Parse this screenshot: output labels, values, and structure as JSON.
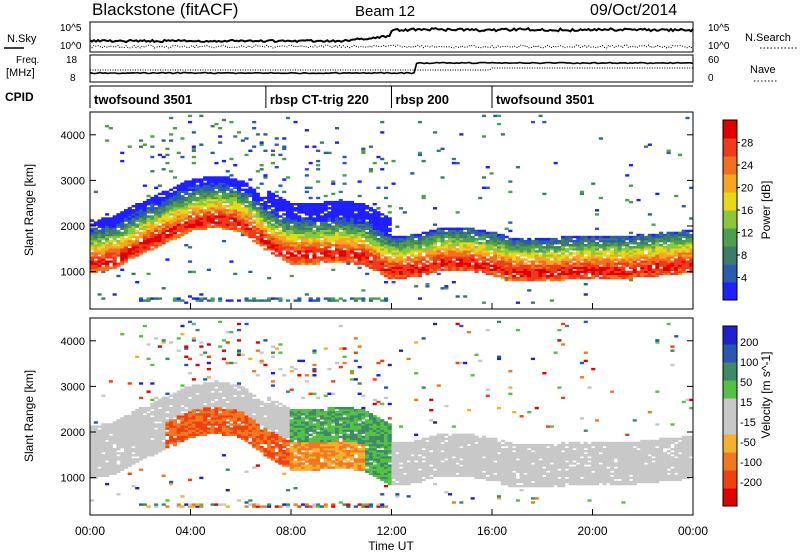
{
  "header": {
    "station": "Blackstone (fitACF)",
    "beam": "Beam 12",
    "date": "09/Oct/2014"
  },
  "strip_labels": {
    "n_sky": "N.Sky",
    "n_search": "N.Search",
    "freq_line1": "Freq.",
    "freq_line2": "[MHz]",
    "nave": "Nave",
    "cpid": "CPID"
  },
  "strip_ticks": {
    "sky_left": [
      "10^5",
      "10^0"
    ],
    "sky_right": [
      "10^5",
      "10^0"
    ],
    "freq_left": [
      "18",
      "8"
    ],
    "nave_right": [
      "60",
      "0"
    ]
  },
  "cpid_segments": [
    {
      "label": "twofsound 3501",
      "start_hour": 0.0
    },
    {
      "label": "rbsp CT-trig 220",
      "start_hour": 7.0
    },
    {
      "label": "rbsp 200",
      "start_hour": 12.0
    },
    {
      "label": "twofsound 3501",
      "start_hour": 16.0
    }
  ],
  "colors": {
    "power_scale": [
      "#1f1fff",
      "#2a5bb0",
      "#3d7d66",
      "#4d9e4d",
      "#8ac83a",
      "#e8d81a",
      "#f5a623",
      "#f07020",
      "#f03a1a",
      "#e00000"
    ],
    "velocity_scale": [
      "#e00000",
      "#f04010",
      "#f07820",
      "#f5b030",
      "#c8c8c8",
      "#c8c8c8",
      "#55c045",
      "#3d8a66",
      "#2a55b0",
      "#1f1fd0"
    ]
  },
  "chart_data": [
    {
      "type": "heatmap",
      "title": "Power",
      "xlabel": "",
      "ylabel": "Slant Range [km]",
      "x_range_hours": [
        0,
        24
      ],
      "ylim_km": [
        180,
        4500
      ],
      "y_ticks": [
        "1000",
        "2000",
        "3000",
        "4000"
      ],
      "colorbar_label": "Power [dB]",
      "colorbar_ticks": [
        "4",
        "8",
        "12",
        "16",
        "20",
        "24",
        "28"
      ],
      "colorbar_range": [
        0,
        32
      ],
      "band_center_km": [
        [
          0,
          1200
        ],
        [
          1,
          1300
        ],
        [
          2,
          1600
        ],
        [
          3,
          1850
        ],
        [
          4,
          2100
        ],
        [
          5,
          2200
        ],
        [
          6,
          2100
        ],
        [
          7,
          1700
        ],
        [
          8,
          1400
        ],
        [
          9,
          1400
        ],
        [
          10,
          1450
        ],
        [
          11,
          1350
        ],
        [
          12,
          1050
        ],
        [
          13,
          1100
        ],
        [
          14,
          1250
        ],
        [
          15,
          1250
        ],
        [
          16,
          1150
        ],
        [
          17,
          1000
        ],
        [
          18,
          1000
        ],
        [
          19,
          1050
        ],
        [
          20,
          1050
        ],
        [
          21,
          1050
        ],
        [
          22,
          1100
        ],
        [
          23,
          1150
        ],
        [
          24,
          1200
        ]
      ]
    },
    {
      "type": "heatmap",
      "title": "Velocity",
      "xlabel": "Time UT",
      "ylabel": "Slant Range [km]",
      "x_range_hours": [
        0,
        24
      ],
      "x_ticks": [
        "00:00",
        "04:00",
        "08:00",
        "12:00",
        "16:00",
        "20:00",
        "00:00"
      ],
      "ylim_km": [
        180,
        4500
      ],
      "y_ticks": [
        "1000",
        "2000",
        "3000",
        "4000"
      ],
      "colorbar_label": "Velocity [m s^-1]",
      "colorbar_ticks": [
        "200",
        "100",
        "50",
        "15",
        "-15",
        "-50",
        "-100",
        "-200"
      ],
      "colorbar_range": [
        -250,
        250
      ]
    }
  ]
}
